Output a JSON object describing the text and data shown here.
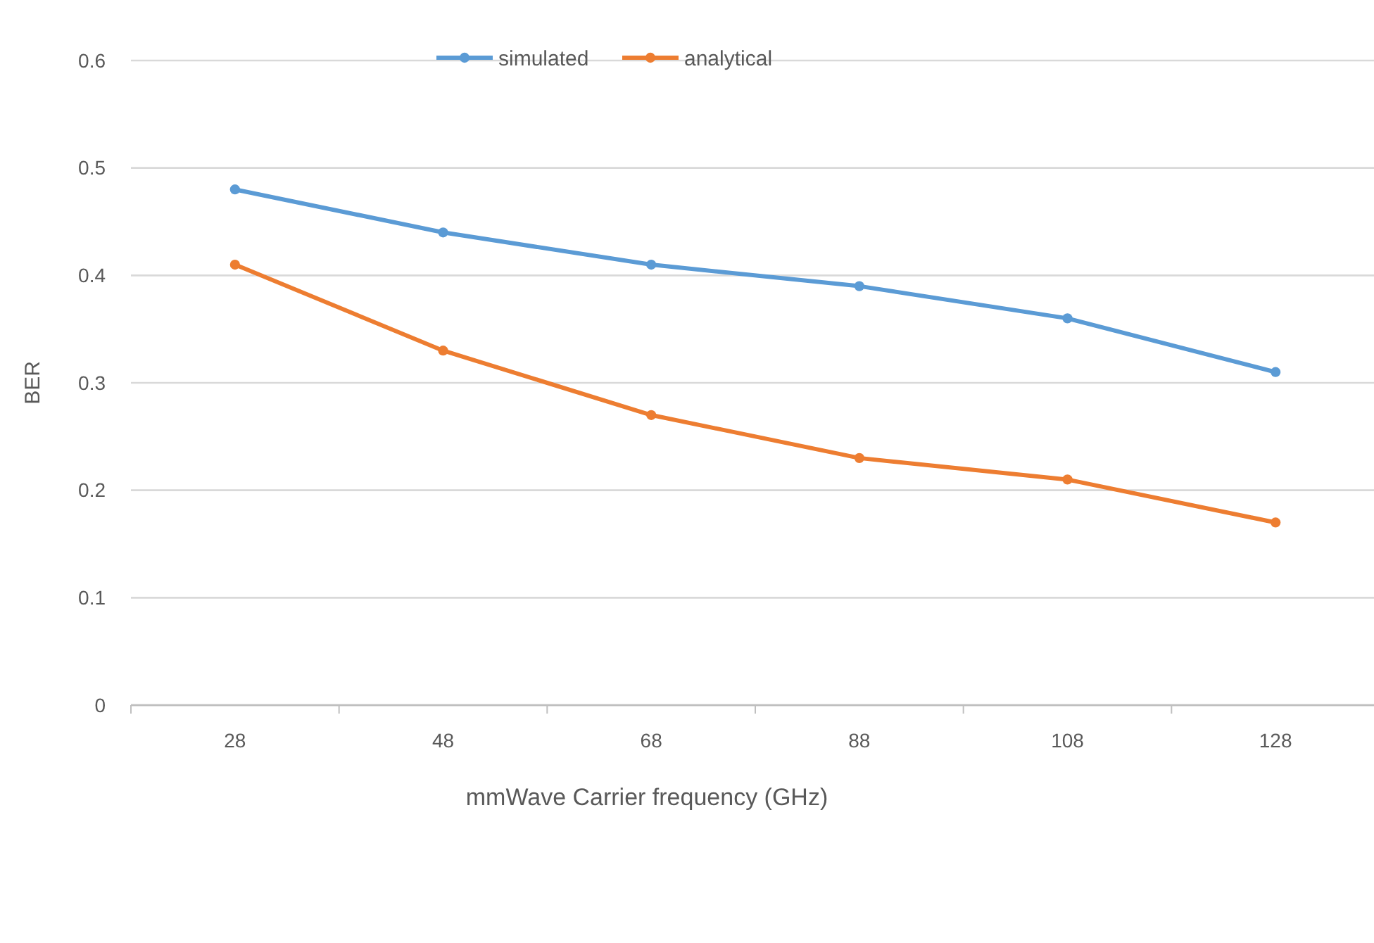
{
  "chart_data": {
    "type": "line",
    "xlabel": "mmWave Carrier frequency (GHz)",
    "ylabel": "BER",
    "categories": [
      "28",
      "48",
      "68",
      "88",
      "108",
      "128"
    ],
    "series": [
      {
        "name": "simulated",
        "color": "#5b9bd5",
        "values": [
          0.48,
          0.44,
          0.41,
          0.39,
          0.36,
          0.31
        ]
      },
      {
        "name": "analytical",
        "color": "#ed7d31",
        "values": [
          0.41,
          0.33,
          0.27,
          0.23,
          0.21,
          0.17
        ]
      }
    ],
    "ylim": [
      0,
      0.6
    ],
    "yticks": [
      0,
      0.1,
      0.2,
      0.3,
      0.4,
      0.5,
      0.6
    ],
    "grid": "y",
    "legend": "top",
    "marker": "circle",
    "line_style": "solid"
  }
}
